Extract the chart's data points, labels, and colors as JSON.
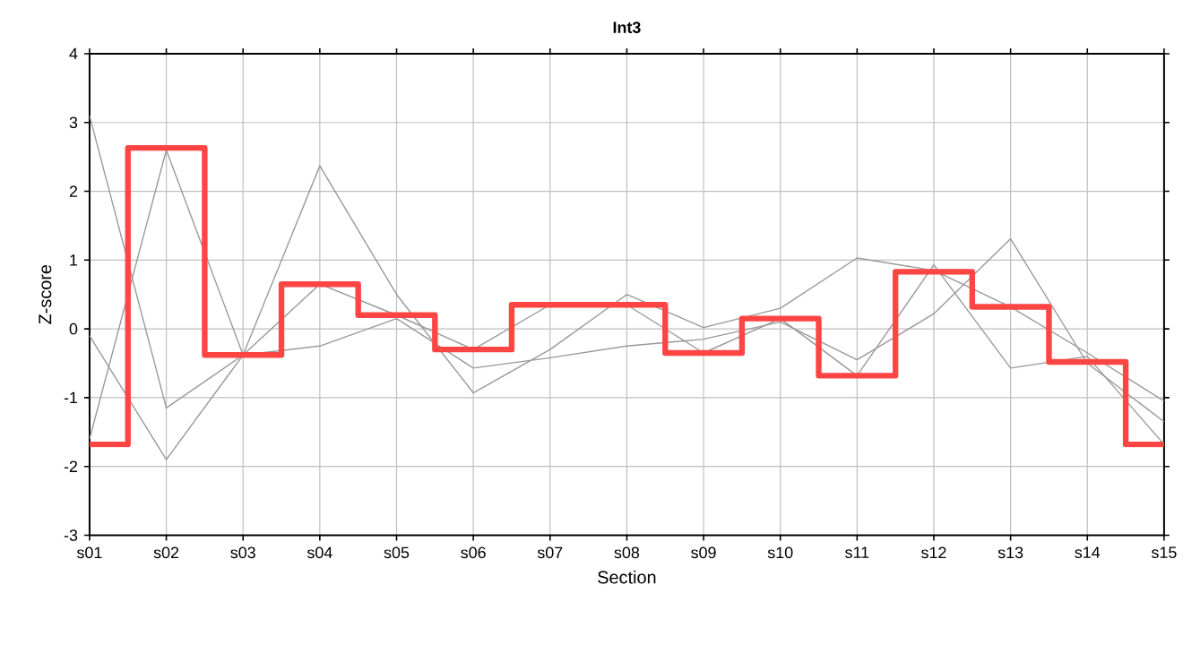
{
  "chart_data": {
    "type": "line",
    "title": "Int3",
    "xlabel": "Section",
    "ylabel": "Z-score",
    "categories": [
      "s01",
      "s02",
      "s03",
      "s04",
      "s05",
      "s06",
      "s07",
      "s08",
      "s09",
      "s10",
      "s11",
      "s12",
      "s13",
      "s14",
      "s15"
    ],
    "series": [
      {
        "color": "#999999",
        "values": [
          3.1,
          -1.15,
          -0.38,
          0.65,
          0.2,
          -0.3,
          0.35,
          0.35,
          -0.35,
          0.15,
          -0.68,
          0.93,
          -0.57,
          -0.4,
          -1.68
        ]
      },
      {
        "color": "#999999",
        "values": [
          -0.1,
          -1.9,
          -0.38,
          -0.25,
          0.15,
          -0.57,
          -0.42,
          -0.25,
          -0.15,
          0.1,
          -0.45,
          0.22,
          1.31,
          -0.5,
          -1.35
        ]
      },
      {
        "color": "#999999",
        "values": [
          -1.6,
          2.6,
          -0.38,
          2.37,
          0.5,
          -0.93,
          -0.3,
          0.5,
          0.02,
          0.3,
          1.03,
          0.85,
          0.32,
          -0.35,
          -1.05
        ]
      },
      {
        "type": "step",
        "color": "#ff4444",
        "values": [
          -1.68,
          2.63,
          -0.38,
          0.65,
          0.2,
          -0.3,
          0.35,
          0.35,
          -0.35,
          0.15,
          -0.68,
          0.83,
          0.32,
          -0.48,
          -1.68
        ]
      }
    ],
    "ylim": [
      -3,
      4
    ],
    "yticks": [
      -3,
      -2,
      -1,
      0,
      1,
      2,
      3,
      4
    ],
    "grid": true
  }
}
